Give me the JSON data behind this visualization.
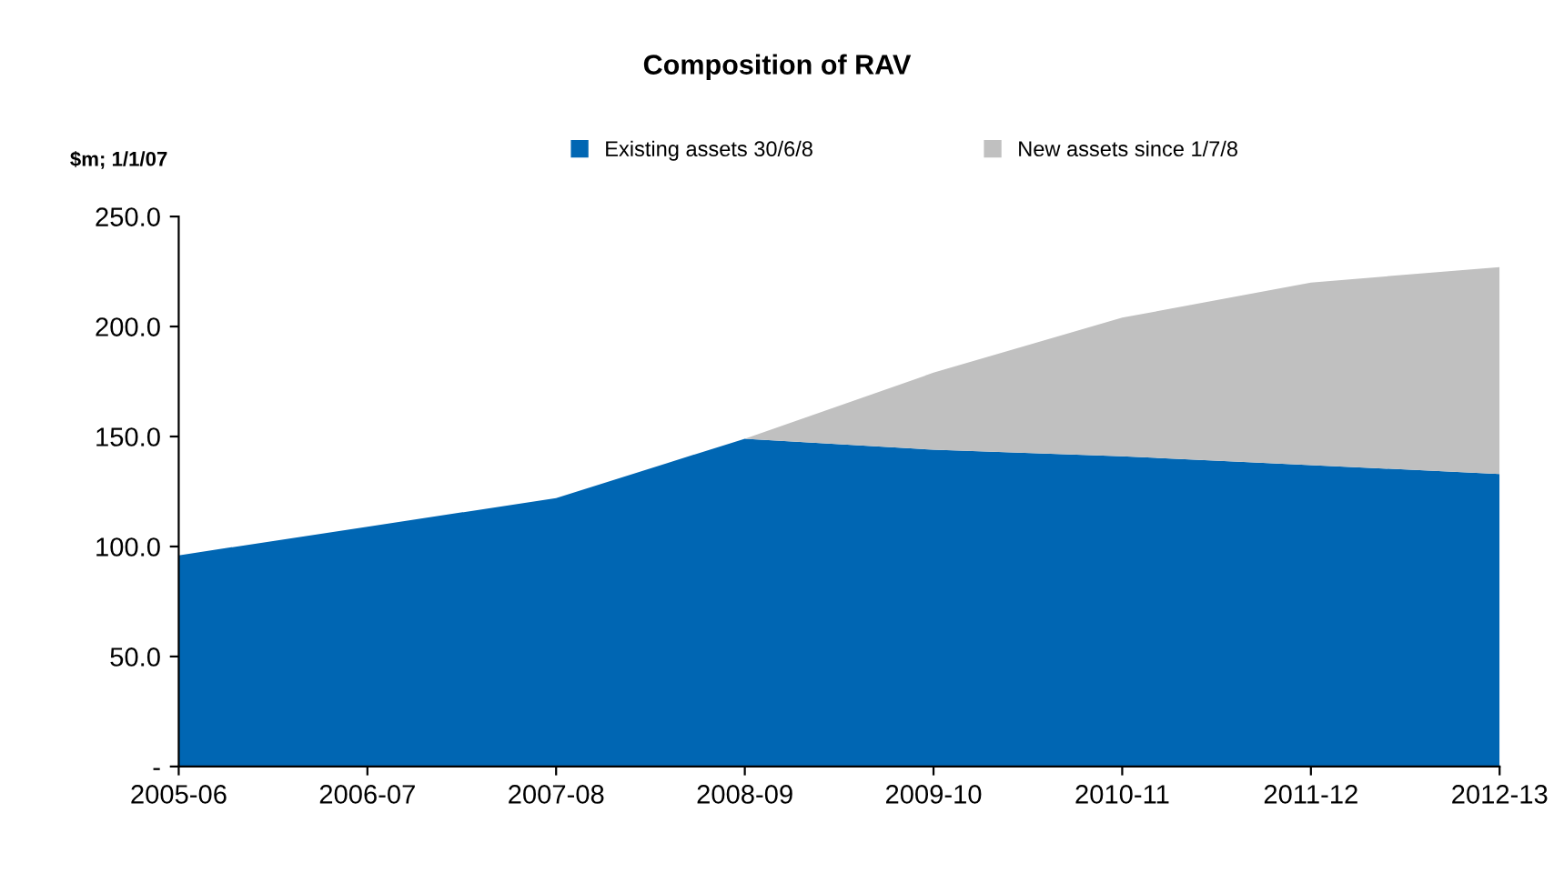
{
  "chart_data": {
    "type": "area",
    "stacked": true,
    "title": "Composition of RAV",
    "ylabel": "$m; 1/1/07",
    "categories": [
      "2005-06",
      "2006-07",
      "2007-08",
      "2008-09",
      "2009-10",
      "2010-11",
      "2011-12",
      "2012-13"
    ],
    "series": [
      {
        "name": "Existing assets 30/6/8",
        "color": "#0066b3",
        "values": [
          96,
          109,
          122,
          149,
          144,
          141,
          137,
          133
        ]
      },
      {
        "name": "New assets since 1/7/8",
        "color": "#c0c0c0",
        "values": [
          0,
          0,
          0,
          0,
          35,
          63,
          83,
          94
        ]
      }
    ],
    "ylim": [
      0,
      250
    ],
    "yticks": [
      {
        "value": 0,
        "label": "-"
      },
      {
        "value": 50,
        "label": "50.0"
      },
      {
        "value": 100,
        "label": "100.0"
      },
      {
        "value": 150,
        "label": "150.0"
      },
      {
        "value": 200,
        "label": "200.0"
      },
      {
        "value": 250,
        "label": "250.0"
      }
    ],
    "grid": false,
    "legend": "top"
  }
}
